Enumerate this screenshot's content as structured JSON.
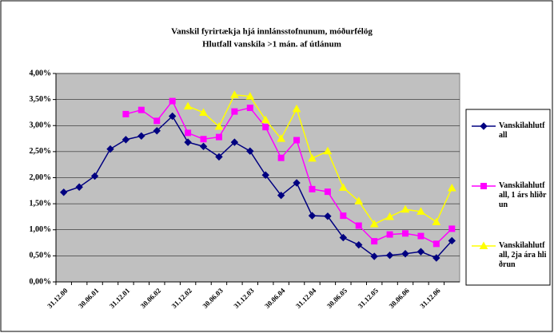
{
  "chart_data": {
    "type": "line",
    "title": "Vanskil fyrirtækja hjá innlánsstofnunum, móðurfélög",
    "subtitle": "Hlutfall vanskila >1 mán. af útlánum",
    "categories": [
      "31.12.00",
      null,
      "30.06.01",
      null,
      "31.12.01",
      null,
      "30.06.02",
      null,
      "31.12.02",
      null,
      "30.06.03",
      null,
      "31.12.03",
      null,
      "30.06.04",
      null,
      "31.12.04",
      null,
      "30.06.05",
      null,
      "31.12.05",
      null,
      "30.06.06",
      null,
      "31.12.06",
      null
    ],
    "series": [
      {
        "name": "Vanskilahlutfall",
        "color": "#000080",
        "marker": "diamond",
        "values": [
          1.72,
          1.82,
          2.03,
          2.55,
          2.73,
          2.8,
          2.9,
          3.18,
          2.68,
          2.6,
          2.4,
          2.68,
          2.51,
          2.05,
          1.66,
          1.9,
          1.27,
          1.26,
          0.85,
          0.71,
          0.49,
          0.51,
          0.54,
          0.58,
          0.46,
          0.79
        ]
      },
      {
        "name": "Vanskilahlutfall, 1 árs hliðrun",
        "color": "#ff00ff",
        "marker": "square",
        "values": [
          null,
          null,
          null,
          null,
          3.22,
          3.3,
          3.09,
          3.47,
          2.86,
          2.74,
          2.78,
          3.27,
          3.34,
          2.97,
          2.38,
          2.72,
          1.78,
          1.73,
          1.27,
          1.08,
          0.78,
          0.91,
          0.93,
          0.88,
          0.73,
          1.02
        ]
      },
      {
        "name": "Vanskilahlutfall, 2ja ára hliðrun",
        "color": "#ffff00",
        "marker": "triangle",
        "values": [
          null,
          null,
          null,
          null,
          null,
          null,
          null,
          null,
          3.37,
          3.25,
          2.98,
          3.59,
          3.56,
          3.11,
          2.75,
          3.32,
          2.37,
          2.51,
          1.81,
          1.55,
          1.11,
          1.25,
          1.39,
          1.35,
          1.15,
          1.8
        ]
      }
    ],
    "ylim": [
      0,
      4
    ],
    "yticks": [
      {
        "value": 0,
        "label": "0,00%"
      },
      {
        "value": 0.5,
        "label": "0,50%"
      },
      {
        "value": 1,
        "label": "1,00%"
      },
      {
        "value": 1.5,
        "label": "1,50%"
      },
      {
        "value": 2,
        "label": "2,00%"
      },
      {
        "value": 2.5,
        "label": "2,50%"
      },
      {
        "value": 3,
        "label": "3,00%"
      },
      {
        "value": 3.5,
        "label": "3,50%"
      },
      {
        "value": 4,
        "label": "4,00%"
      }
    ],
    "grid": true,
    "legend": "right",
    "plot_background": "#c0c0c0"
  }
}
